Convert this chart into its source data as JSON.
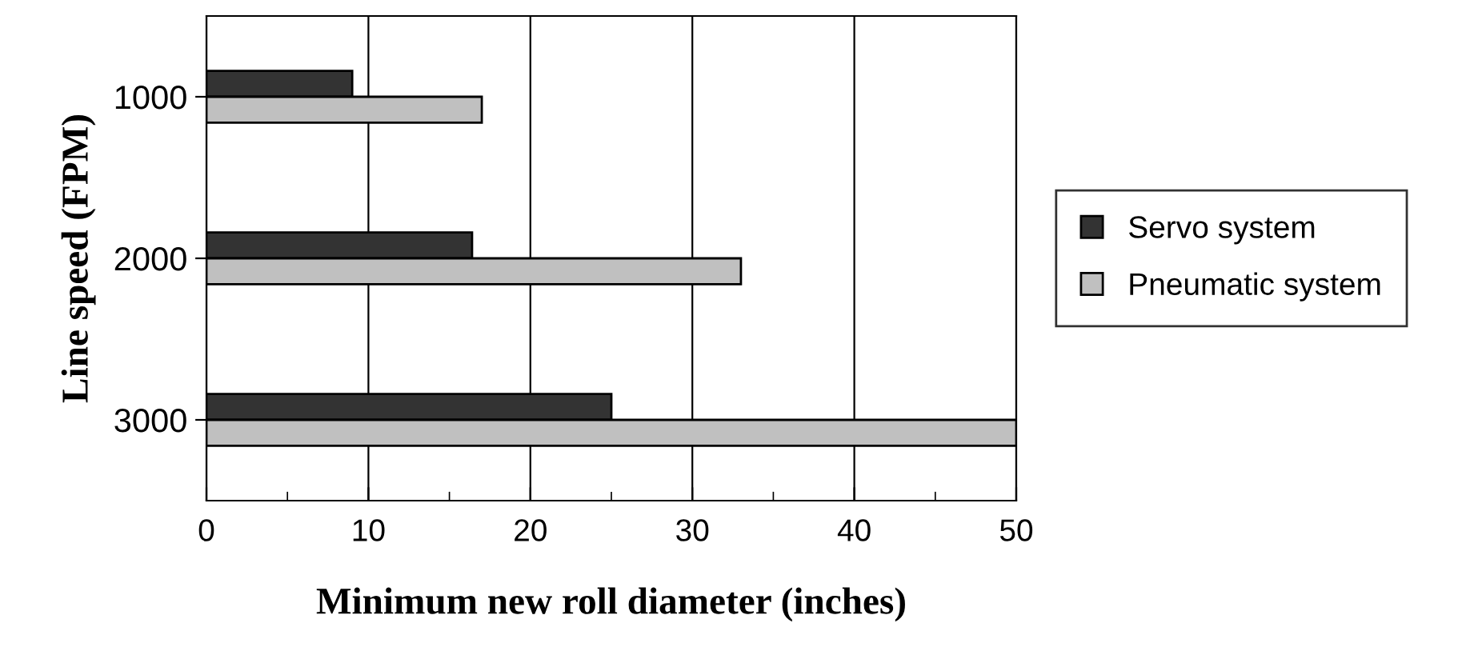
{
  "chart_data": {
    "type": "bar",
    "orientation": "horizontal",
    "xlabel": "Minimum new roll diameter (inches)",
    "ylabel": "Line speed (FPM)",
    "categories": [
      "1000",
      "2000",
      "3000"
    ],
    "series": [
      {
        "name": "Servo system",
        "color": "#333333",
        "values": [
          9,
          16.4,
          25
        ]
      },
      {
        "name": "Pneumatic system",
        "color": "#c0c0c0",
        "values": [
          17,
          33,
          50
        ]
      }
    ],
    "xlim": [
      0,
      50
    ],
    "xticks": [
      0,
      10,
      20,
      30,
      40,
      50
    ],
    "grid": "x",
    "legend": "right"
  }
}
